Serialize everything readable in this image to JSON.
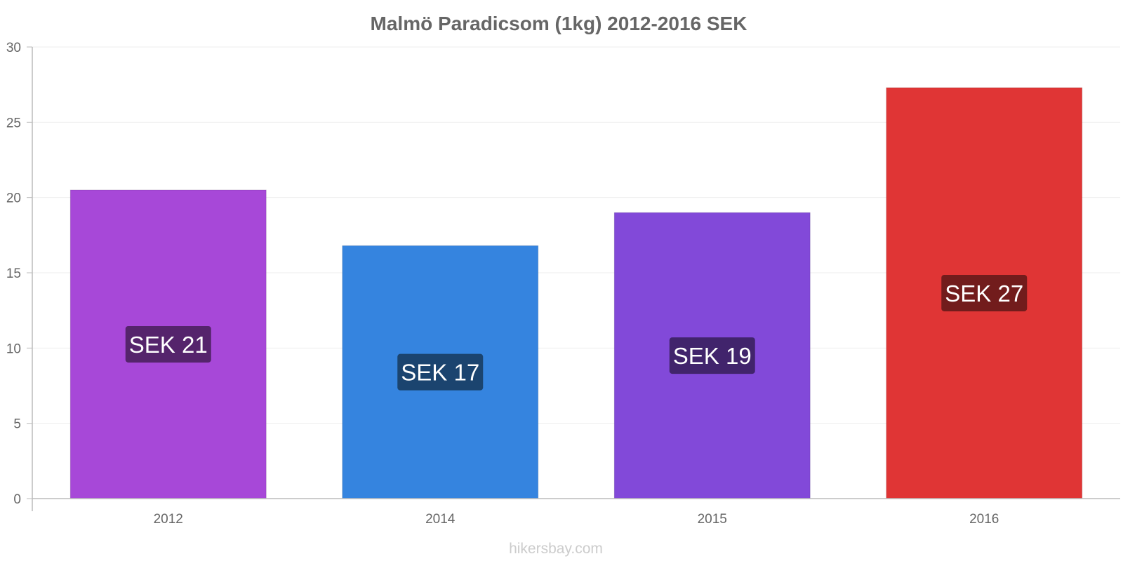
{
  "chart_data": {
    "type": "bar",
    "title": "Malmö Paradicsom (1kg) 2012-2016 SEK",
    "xlabel": "",
    "ylabel": "",
    "categories": [
      "2012",
      "2014",
      "2015",
      "2016"
    ],
    "values": [
      20.5,
      16.8,
      19.0,
      27.3
    ],
    "data_labels": [
      "SEK 21",
      "SEK 17",
      "SEK 19",
      "SEK 27"
    ],
    "ylim": [
      0,
      30
    ],
    "yticks": [
      0,
      5,
      10,
      15,
      20,
      25,
      30
    ],
    "grid": true,
    "legend": "none",
    "bar_colors": [
      "#a748d8",
      "#3584df",
      "#8249d9",
      "#e03535"
    ],
    "label_box_colors": [
      "#55246c",
      "#1b446f",
      "#41246c",
      "#721c1c"
    ]
  },
  "watermark": "hikersbay.com",
  "colors": {
    "axis": "#bbbbbb",
    "grid": "#eeeeee",
    "text": "#666666"
  }
}
